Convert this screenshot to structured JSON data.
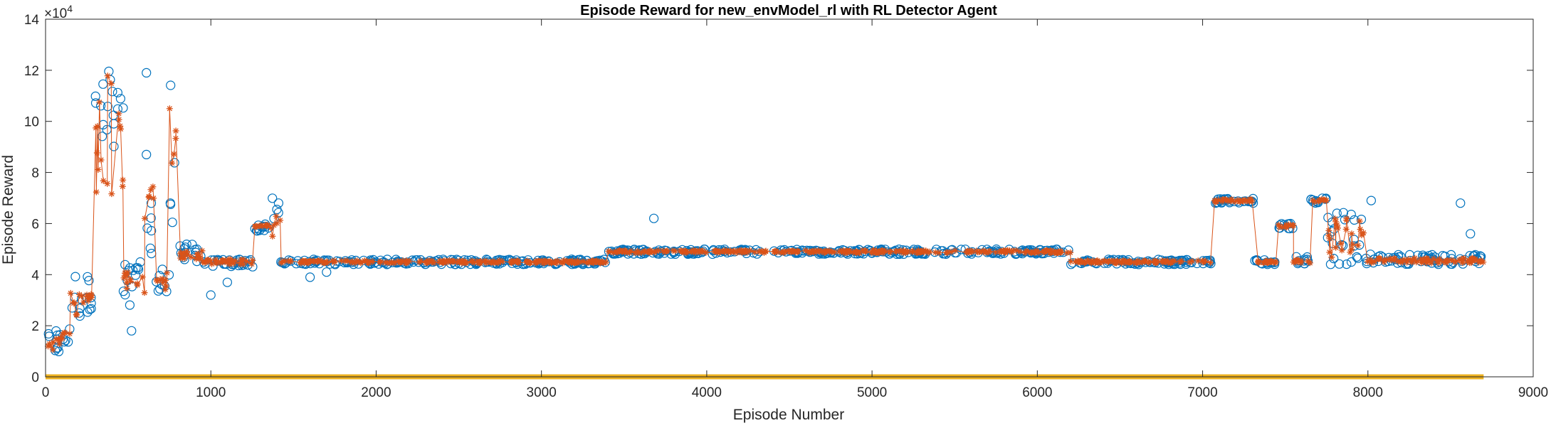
{
  "chart_data": {
    "type": "scatter",
    "title": "Episode Reward for new_envModel_rl with RL Detector Agent",
    "xlabel": "Episode Number",
    "ylabel": "Episode Reward",
    "y_exponent_label": "×10",
    "y_exponent_power": "4",
    "xlim": [
      0,
      9000
    ],
    "ylim": [
      0,
      140000
    ],
    "xticks": [
      "0",
      "1000",
      "2000",
      "3000",
      "4000",
      "5000",
      "6000",
      "7000",
      "8000",
      "9000"
    ],
    "yticks": [
      "0",
      "2",
      "4",
      "6",
      "8",
      "10",
      "12",
      "14"
    ],
    "grid": false,
    "box": true,
    "series": [
      {
        "marker": "circle",
        "color": "#0072BD",
        "segments": [
          {
            "x0": 1,
            "x1": 100,
            "y0": 8000,
            "y1": 18000
          },
          {
            "x0": 100,
            "x1": 150,
            "y0": 10000,
            "y1": 20000
          },
          {
            "x0": 150,
            "x1": 220,
            "y0": 20000,
            "y1": 42000
          },
          {
            "x0": 220,
            "x1": 300,
            "y0": 25000,
            "y1": 40000
          },
          {
            "x0": 300,
            "x1": 470,
            "y0": 90000,
            "y1": 121000
          },
          {
            "x0": 470,
            "x1": 600,
            "y0": 28000,
            "y1": 45000
          },
          {
            "x0": 600,
            "x1": 660,
            "y0": 45000,
            "y1": 70000
          },
          {
            "x0": 660,
            "x1": 750,
            "y0": 28000,
            "y1": 45000
          },
          {
            "x0": 750,
            "x1": 800,
            "y0": 60000,
            "y1": 121000
          },
          {
            "x0": 800,
            "x1": 950,
            "y0": 45000,
            "y1": 52000
          },
          {
            "x0": 950,
            "x1": 1260,
            "y0": 43000,
            "y1": 46000
          },
          {
            "x0": 1260,
            "x1": 1370,
            "y0": 57000,
            "y1": 60000
          },
          {
            "x0": 1370,
            "x1": 1420,
            "y0": 60000,
            "y1": 70000
          },
          {
            "x0": 1420,
            "x1": 3400,
            "y0": 44000,
            "y1": 46000
          },
          {
            "x0": 3400,
            "x1": 6200,
            "y0": 48000,
            "y1": 50000
          },
          {
            "x0": 6200,
            "x1": 7050,
            "y0": 44000,
            "y1": 46000
          },
          {
            "x0": 7050,
            "x1": 7310,
            "y0": 68000,
            "y1": 70000
          },
          {
            "x0": 7310,
            "x1": 7450,
            "y0": 44000,
            "y1": 46000
          },
          {
            "x0": 7450,
            "x1": 7550,
            "y0": 58000,
            "y1": 60000
          },
          {
            "x0": 7550,
            "x1": 7650,
            "y0": 44000,
            "y1": 47000
          },
          {
            "x0": 7650,
            "x1": 7750,
            "y0": 68000,
            "y1": 70000
          },
          {
            "x0": 7750,
            "x1": 7980,
            "y0": 44000,
            "y1": 65000
          },
          {
            "x0": 7980,
            "x1": 8700,
            "y0": 44000,
            "y1": 48000
          }
        ],
        "outliers": [
          [
            520,
            18000
          ],
          [
            610,
            87000
          ],
          [
            610,
            119000
          ],
          [
            1000,
            32000
          ],
          [
            1100,
            37000
          ],
          [
            1600,
            39000
          ],
          [
            1700,
            41000
          ],
          [
            3680,
            62000
          ],
          [
            8020,
            69000
          ],
          [
            8560,
            68000
          ],
          [
            8620,
            56000
          ]
        ]
      },
      {
        "marker": "asterisk",
        "color": "#D95319",
        "segments": [
          {
            "x0": 1,
            "x1": 100,
            "y0": 10000,
            "y1": 16000
          },
          {
            "x0": 100,
            "x1": 150,
            "y0": 12000,
            "y1": 18000
          },
          {
            "x0": 150,
            "x1": 220,
            "y0": 24000,
            "y1": 34000
          },
          {
            "x0": 220,
            "x1": 300,
            "y0": 28000,
            "y1": 36000
          },
          {
            "x0": 300,
            "x1": 470,
            "y0": 62000,
            "y1": 118000
          },
          {
            "x0": 470,
            "x1": 600,
            "y0": 32000,
            "y1": 42000
          },
          {
            "x0": 600,
            "x1": 660,
            "y0": 60000,
            "y1": 75000
          },
          {
            "x0": 660,
            "x1": 750,
            "y0": 32000,
            "y1": 42000
          },
          {
            "x0": 750,
            "x1": 800,
            "y0": 80000,
            "y1": 120000
          },
          {
            "x0": 800,
            "x1": 950,
            "y0": 46000,
            "y1": 50000
          },
          {
            "x0": 950,
            "x1": 1260,
            "y0": 44000,
            "y1": 46000
          },
          {
            "x0": 1260,
            "x1": 1370,
            "y0": 58000,
            "y1": 59500
          },
          {
            "x0": 1370,
            "x1": 1420,
            "y0": 55000,
            "y1": 63000
          },
          {
            "x0": 1420,
            "x1": 3400,
            "y0": 44500,
            "y1": 45500
          },
          {
            "x0": 3400,
            "x1": 6200,
            "y0": 48500,
            "y1": 49500
          },
          {
            "x0": 6200,
            "x1": 7050,
            "y0": 44500,
            "y1": 45500
          },
          {
            "x0": 7050,
            "x1": 7310,
            "y0": 68500,
            "y1": 69500
          },
          {
            "x0": 7310,
            "x1": 7450,
            "y0": 44500,
            "y1": 45500
          },
          {
            "x0": 7450,
            "x1": 7550,
            "y0": 58500,
            "y1": 59500
          },
          {
            "x0": 7550,
            "x1": 7650,
            "y0": 44500,
            "y1": 46000
          },
          {
            "x0": 7650,
            "x1": 7750,
            "y0": 68500,
            "y1": 69500
          },
          {
            "x0": 7750,
            "x1": 7980,
            "y0": 46000,
            "y1": 62000
          },
          {
            "x0": 7980,
            "x1": 8700,
            "y0": 44500,
            "y1": 46500
          }
        ],
        "outliers": []
      },
      {
        "marker": "line",
        "color": "#EDB120",
        "segments": [
          {
            "x0": 0,
            "x1": 8700,
            "y0": 0,
            "y1": 0
          }
        ],
        "outliers": []
      }
    ]
  }
}
